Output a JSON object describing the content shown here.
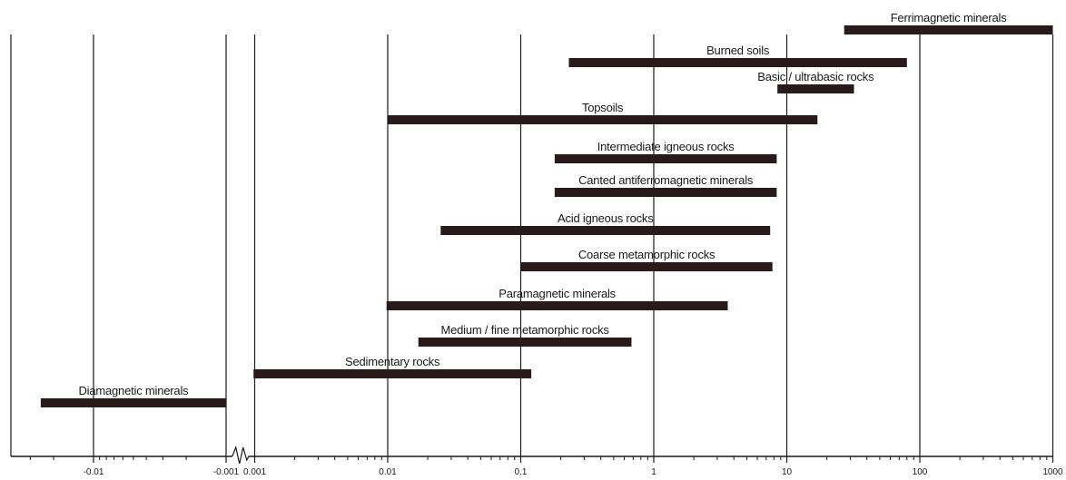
{
  "chart_data": {
    "type": "bar",
    "orientation": "horizontal",
    "title": "",
    "xlabel": "",
    "ylabel": "",
    "x_scale": "log (split: negative side -0.01 to -0.001, positive side 0.001 to 1000)",
    "grid": "vertical lines at major ticks",
    "legend": "none",
    "bar_color": "#2a1a1a",
    "xticks": [
      "-0.01",
      "-0.001",
      "0.001",
      "0.01",
      "0.1",
      "1",
      "10",
      "100",
      "1000"
    ],
    "bars": [
      {
        "label": "Ferrimagnetic minerals",
        "start": 27,
        "end": 1000
      },
      {
        "label": "Burned soils",
        "start": 0.23,
        "end": 80
      },
      {
        "label": "Basic / ultrabasic rocks",
        "start": 8.5,
        "end": 32
      },
      {
        "label": "Topsoils",
        "start": 0.01,
        "end": 17
      },
      {
        "label": "Intermediate igneous rocks",
        "start": 0.18,
        "end": 8.4
      },
      {
        "label": "Canted antiferromagnetic minerals",
        "start": 0.18,
        "end": 8.4
      },
      {
        "label": "Acid igneous rocks",
        "start": 0.025,
        "end": 7.5
      },
      {
        "label": "Coarse metamorphic rocks",
        "start": 0.1,
        "end": 7.8
      },
      {
        "label": "Paramagnetic minerals",
        "start": 0.0098,
        "end": 3.6
      },
      {
        "label": "Medium / fine metamorphic rocks",
        "start": 0.017,
        "end": 0.68
      },
      {
        "label": "Sedimentary rocks",
        "start": 0.00098,
        "end": 0.12
      },
      {
        "label": "Diamagnetic minerals",
        "start": -0.025,
        "end": -0.001
      }
    ]
  }
}
